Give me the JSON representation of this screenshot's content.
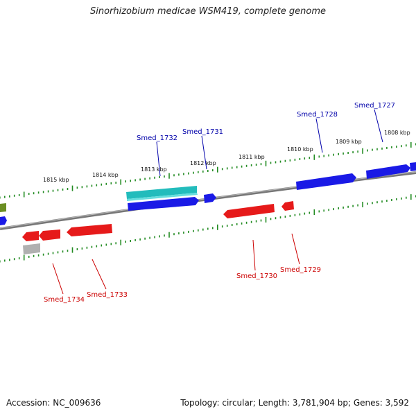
{
  "title": "Sinorhizobium medicae WSM419, complete genome",
  "footer": {
    "accession": "Accession: NC_009636",
    "topology": "Topology: circular; Length: 3,781,904 bp; Genes: 3,592"
  },
  "colors": {
    "forward_gene": "#1a1ae6",
    "reverse_gene": "#e61a1a",
    "rna_gene": "#22bcbc",
    "other_reverse": "#b0b0b0",
    "other_forward": "#6b8e23",
    "backbone": "#777777",
    "tick": "#228b22",
    "forward_label": "#0000aa",
    "reverse_label": "#cc0000"
  },
  "ticks": [
    {
      "label": "1815 kbp",
      "kbp": 1815
    },
    {
      "label": "1814 kbp",
      "kbp": 1814
    },
    {
      "label": "1813 kbp",
      "kbp": 1813
    },
    {
      "label": "1812 kbp",
      "kbp": 1812
    },
    {
      "label": "1811 kbp",
      "kbp": 1811
    },
    {
      "label": "1810 kbp",
      "kbp": 1810
    },
    {
      "label": "1809 kbp",
      "kbp": 1809
    },
    {
      "label": "1808 kbp",
      "kbp": 1808
    }
  ],
  "gene_labels": {
    "forward": [
      "Smed_1732",
      "Smed_1731",
      "Smed_1728",
      "Smed_1727"
    ],
    "reverse": [
      "Smed_1734",
      "Smed_1733",
      "Smed_1730",
      "Smed_1729"
    ]
  }
}
